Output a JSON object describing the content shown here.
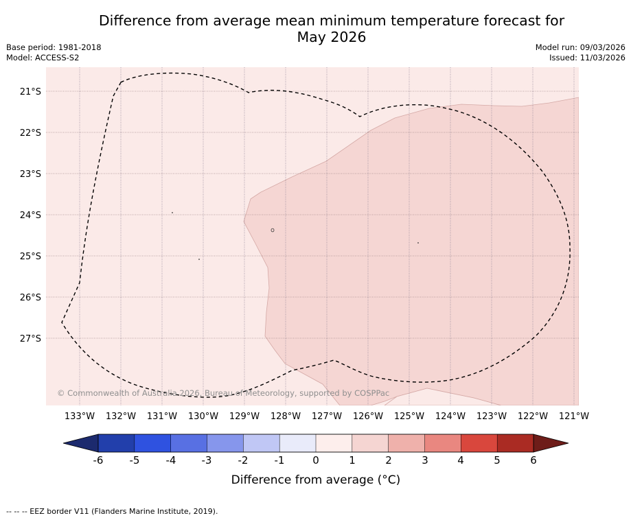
{
  "title": {
    "line1": "Difference from average mean minimum temperature forecast for",
    "line2": "May 2026"
  },
  "meta_left": {
    "base_period": "Base period: 1981-2018",
    "model": "Model: ACCESS-S2"
  },
  "meta_right": {
    "model_run": "Model run: 09/03/2026",
    "issued": "Issued: 11/03/2026"
  },
  "map": {
    "lat_labels": [
      "21°S",
      "22°S",
      "23°S",
      "24°S",
      "25°S",
      "26°S",
      "27°S"
    ],
    "lon_labels": [
      "133°W",
      "132°W",
      "131°W",
      "130°W",
      "129°W",
      "128°W",
      "127°W",
      "126°W",
      "125°W",
      "124°W",
      "123°W",
      "122°W",
      "121°W"
    ],
    "copyright": "© Commonwealth of Australia 2026, Bureau of Meteorology, supported by COSPPac",
    "regions": [
      {
        "name": "0 to 1",
        "color": "#fbeae8"
      },
      {
        "name": "1 to 2",
        "color": "#f5d6d3"
      }
    ],
    "eez_border": "dashed"
  },
  "colorbar": {
    "ticks": [
      "-6",
      "-5",
      "-4",
      "-3",
      "-2",
      "-1",
      "0",
      "1",
      "2",
      "3",
      "4",
      "5",
      "6"
    ],
    "colors": [
      "#223fab",
      "#2f52e0",
      "#5870e3",
      "#8696ec",
      "#c0c7f5",
      "#e9ebfa",
      "#fdeeec",
      "#f5d5d2",
      "#efb1ab",
      "#e98780",
      "#d9473d",
      "#aa2b23"
    ],
    "under_color": "#1c2a6e",
    "over_color": "#6e1d19",
    "label": "Difference from average (°C)"
  },
  "footnote": "--  --  -- EEZ border V11 (Flanders Marine Institute, 2019)."
}
